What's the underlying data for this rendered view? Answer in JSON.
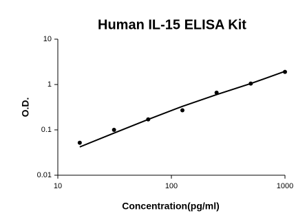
{
  "chart_data": {
    "type": "scatter",
    "title": "Human IL-15 ELISA Kit",
    "x_label": "Concentration(pg/ml)",
    "y_label": "O.D.",
    "x": [
      15.6,
      31.25,
      62.5,
      125,
      250,
      500,
      1000
    ],
    "series": [
      {
        "color": "#000000",
        "values": [
          0.052,
          0.1,
          0.17,
          0.27,
          0.66,
          1.05,
          1.9
        ]
      },
      {
        "color": "#000000",
        "line": true,
        "values": [
          0.042,
          0.085,
          0.17,
          0.33,
          0.6,
          1.05,
          1.95
        ]
      }
    ],
    "xlog": true,
    "ylog": true,
    "xlim": [
      10,
      1000
    ],
    "ylim": [
      0.01,
      10
    ],
    "xticks": [
      10,
      100,
      1000
    ],
    "yticks": [
      0.01,
      0.1,
      1,
      10
    ],
    "grid": false
  }
}
